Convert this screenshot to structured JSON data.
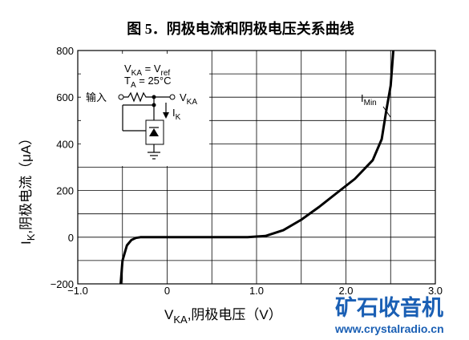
{
  "chart_data": {
    "type": "line",
    "title": "图 5．阴极电流和阴极电压关系曲线",
    "x_label": [
      "V",
      "KA",
      ",阴极电压（V）"
    ],
    "y_label": [
      "I",
      "K",
      ",阴极电流（μA）"
    ],
    "x": [
      -0.52,
      -0.5,
      -0.45,
      -0.4,
      -0.35,
      -0.3,
      0,
      0.5,
      0.9,
      1.1,
      1.3,
      1.5,
      1.7,
      1.9,
      2.1,
      2.3,
      2.4,
      2.45,
      2.5,
      2.52,
      2.53
    ],
    "values": [
      -200,
      -100,
      -35,
      -12,
      -3,
      0,
      0,
      0,
      0,
      5,
      30,
      75,
      130,
      190,
      250,
      330,
      420,
      540,
      650,
      750,
      800
    ],
    "color": "#000000",
    "xlim": [
      -1,
      3
    ],
    "ylim": [
      -200,
      800
    ],
    "xticks": [
      {
        "value": -1,
        "label": "−1.0"
      },
      0,
      {
        "value": 1,
        "label": "1.0"
      },
      {
        "value": 2,
        "label": "2.0"
      },
      {
        "value": 3,
        "label": "3.0"
      }
    ],
    "yticks": [
      {
        "value": -200,
        "label": "−200"
      },
      0,
      200,
      400,
      600,
      800
    ],
    "xgrid": [
      -0.5,
      0.5,
      1.5,
      2.5
    ],
    "ygrid": [
      -100,
      100,
      300,
      500,
      700
    ],
    "grid": true,
    "annotation": [
      "I",
      "Min"
    ],
    "inset": {
      "condition1": [
        "V",
        "KA",
        " = V",
        "ref"
      ],
      "condition2": [
        "T",
        "A",
        " = 25°C"
      ],
      "input": "输入",
      "output": [
        "V",
        "KA"
      ],
      "current": [
        "I",
        "K"
      ]
    },
    "watermark": {
      "title": "矿石收音机",
      "url": "www.crystalradio.cn"
    }
  }
}
